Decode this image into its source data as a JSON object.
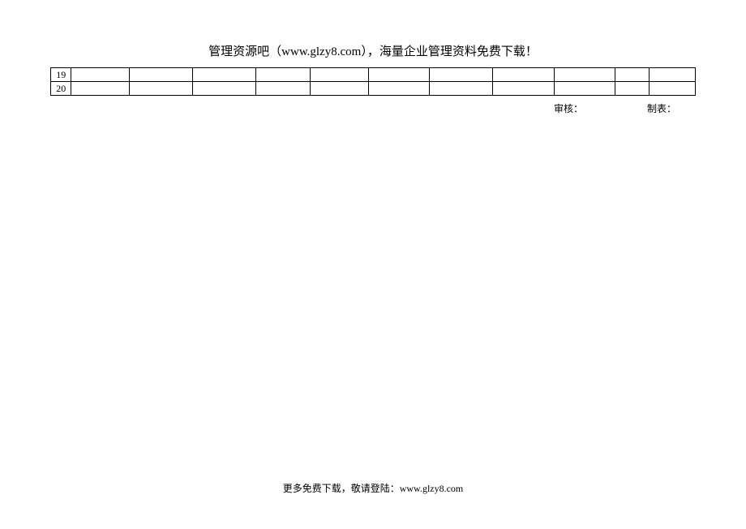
{
  "header": {
    "text": "管理资源吧（www.glzy8.com），海量企业管理资料免费下载！"
  },
  "table": {
    "type": "table",
    "column_widths_pct": [
      3.2,
      9.0,
      9.8,
      9.8,
      8.5,
      9.0,
      9.5,
      9.8,
      9.5,
      9.5,
      5.2,
      7.2
    ],
    "rows": [
      [
        "19",
        "",
        "",
        "",
        "",
        "",
        "",
        "",
        "",
        "",
        "",
        ""
      ],
      [
        "20",
        "",
        "",
        "",
        "",
        "",
        "",
        "",
        "",
        "",
        "",
        ""
      ]
    ],
    "border_color": "#000000",
    "background_color": "#ffffff",
    "font_size": 12
  },
  "signoff": {
    "reviewer_label": "审核：",
    "preparer_label": "制表："
  },
  "footer": {
    "text": "更多免费下载，敬请登陆：www.glzy8.com"
  }
}
